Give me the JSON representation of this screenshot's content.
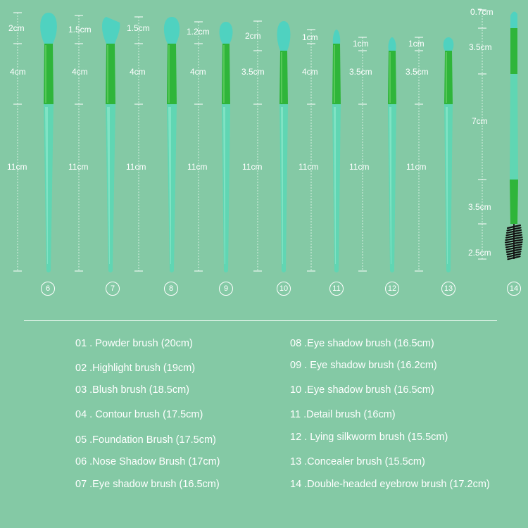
{
  "colors": {
    "background": "#84c9a5",
    "bristle": "#4fd2c0",
    "ferrule": "#2fb53a",
    "handle": "#60d6b3",
    "text": "#ffffff"
  },
  "brushes": [
    {
      "number": "6",
      "measures": [
        "2cm",
        "4cm",
        "11cm"
      ]
    },
    {
      "number": "7",
      "measures": [
        "1.5cm",
        "4cm",
        "11cm"
      ]
    },
    {
      "number": "8",
      "measures": [
        "1.5cm",
        "4cm",
        "11cm"
      ]
    },
    {
      "number": "9",
      "measures": [
        "1.2cm",
        "4cm",
        "11cm"
      ]
    },
    {
      "number": "10",
      "measures": [
        "2cm",
        "3.5cm",
        "11cm"
      ]
    },
    {
      "number": "11",
      "measures": [
        "1cm",
        "4cm",
        "11cm"
      ]
    },
    {
      "number": "12",
      "measures": [
        "1cm",
        "3.5cm",
        "11cm"
      ]
    },
    {
      "number": "13",
      "measures": [
        "1cm",
        "3.5cm",
        "11cm"
      ]
    },
    {
      "number": "14",
      "measures": [
        "0.7cm",
        "3.5cm",
        "7cm",
        "3.5cm",
        "2.5cm"
      ]
    }
  ],
  "legend": {
    "left": [
      "01 . Powder brush (20cm)",
      "02 .Highlight brush (19cm)",
      "03 .Blush brush (18.5cm)",
      "04 . Contour brush (17.5cm)",
      "05 .Foundation Brush (17.5cm)",
      "06 .Nose Shadow Brush (17cm)",
      "07 .Eye shadow brush (16.5cm)"
    ],
    "right": [
      "08 .Eye shadow brush (16.5cm)",
      "09 . Eye shadow brush (16.2cm)",
      "10 .Eye shadow brush (16.5cm)",
      "11 .Detail brush (16cm)",
      "12 . Lying silkworm brush (15.5cm)",
      "13 .Concealer brush (15.5cm)",
      "14 .Double-headed eyebrow brush (17.2cm)"
    ]
  }
}
